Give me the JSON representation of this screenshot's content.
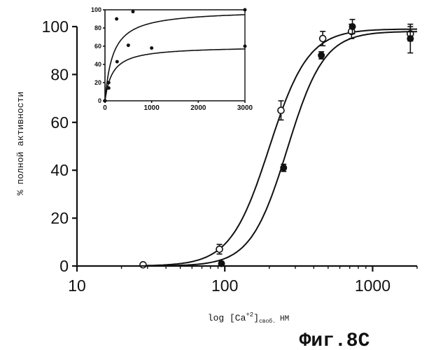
{
  "chart_data": [
    {
      "type": "line",
      "title": "",
      "xlabel": "log [Ca+2]своб. НМ",
      "xlabel_parts": {
        "main": "log [Ca",
        "sup": "+2",
        "close": "]",
        "sub": "своб.",
        "unit": "НМ"
      },
      "ylabel": "% полной активности",
      "x_scale": "log",
      "xlim": [
        10,
        2000
      ],
      "ylim": [
        0,
        100
      ],
      "x_ticks": [
        10,
        100,
        1000
      ],
      "x_tick_labels": [
        "10",
        "100",
        "1000"
      ],
      "y_ticks": [
        0,
        20,
        40,
        60,
        80,
        100
      ],
      "y_tick_labels": [
        "0",
        "20",
        "40",
        "60",
        "80",
        "100"
      ],
      "grid": false,
      "series": [
        {
          "marker": "open-circle",
          "points": [
            {
              "x": 28,
              "y": 0.5,
              "err": 0.5
            },
            {
              "x": 92,
              "y": 7,
              "err": 2
            },
            {
              "x": 240,
              "y": 65,
              "err": 4
            },
            {
              "x": 460,
              "y": 95,
              "err": 3
            },
            {
              "x": 720,
              "y": 98,
              "err": 3
            },
            {
              "x": 1800,
              "y": 97,
              "err": 3
            }
          ],
          "fit": {
            "ec50": 200,
            "hill": 3.3,
            "top": 99
          }
        },
        {
          "marker": "filled-circle",
          "points": [
            {
              "x": 95,
              "y": 1,
              "err": 0.5
            },
            {
              "x": 250,
              "y": 41,
              "err": 1.5
            },
            {
              "x": 450,
              "y": 88,
              "err": 1.5
            },
            {
              "x": 730,
              "y": 100,
              "err": 3
            },
            {
              "x": 1800,
              "y": 95,
              "err": 6
            }
          ],
          "fit": {
            "ec50": 265,
            "hill": 3.5,
            "top": 98
          }
        }
      ]
    },
    {
      "type": "line",
      "title": "",
      "x_scale": "linear",
      "xlim": [
        0,
        3000
      ],
      "ylim": [
        0,
        100
      ],
      "x_ticks": [
        0,
        1000,
        2000,
        3000
      ],
      "x_tick_labels": [
        "0",
        "1000",
        "2000",
        "3000"
      ],
      "y_ticks": [
        0,
        20,
        40,
        60,
        80,
        100
      ],
      "y_tick_labels": [
        "0",
        "20",
        "40",
        "60",
        "80",
        "100"
      ],
      "grid": false,
      "series": [
        {
          "marker": "filled-circle",
          "points": [
            {
              "x": 0,
              "y": 0
            },
            {
              "x": 80,
              "y": 20
            },
            {
              "x": 250,
              "y": 90
            },
            {
              "x": 600,
              "y": 98
            },
            {
              "x": 3000,
              "y": 100
            }
          ],
          "fit": {
            "top": 100,
            "k": 170
          }
        },
        {
          "marker": "filled-circle",
          "points": [
            {
              "x": 0,
              "y": 0
            },
            {
              "x": 80,
              "y": 14
            },
            {
              "x": 260,
              "y": 43
            },
            {
              "x": 500,
              "y": 61
            },
            {
              "x": 1000,
              "y": 58
            },
            {
              "x": 3000,
              "y": 60
            }
          ],
          "fit": {
            "top": 60,
            "k": 160
          }
        }
      ]
    }
  ],
  "figure_label": "Фиг.8С"
}
